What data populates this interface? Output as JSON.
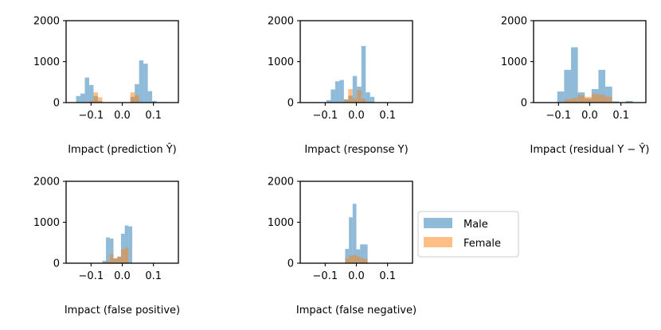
{
  "chart_data": [
    {
      "type": "histogram",
      "xlabel": "Impact (prediction Ŷ)",
      "xlim": [
        -0.18,
        0.18
      ],
      "ylim": [
        0,
        2000
      ],
      "xticks": [
        {
          "v": -0.1,
          "label": "−0.1"
        },
        {
          "v": 0.0,
          "label": "0.0"
        },
        {
          "v": 0.1,
          "label": "0.1"
        }
      ],
      "yticks": [
        {
          "v": 0,
          "label": "0"
        },
        {
          "v": 1000,
          "label": "1000"
        },
        {
          "v": 2000,
          "label": "2000"
        }
      ],
      "series": [
        {
          "name": "Male",
          "bins": [
            {
              "x0": -0.148,
              "x1": -0.134,
              "y": 160
            },
            {
              "x0": -0.134,
              "x1": -0.12,
              "y": 220
            },
            {
              "x0": -0.12,
              "x1": -0.106,
              "y": 610
            },
            {
              "x0": -0.106,
              "x1": -0.092,
              "y": 430
            },
            {
              "x0": -0.092,
              "x1": -0.078,
              "y": 160
            },
            {
              "x0": -0.078,
              "x1": -0.064,
              "y": 40
            },
            {
              "x0": 0.026,
              "x1": 0.04,
              "y": 140
            },
            {
              "x0": 0.04,
              "x1": 0.054,
              "y": 450
            },
            {
              "x0": 0.054,
              "x1": 0.068,
              "y": 1030
            },
            {
              "x0": 0.068,
              "x1": 0.082,
              "y": 950
            },
            {
              "x0": 0.082,
              "x1": 0.096,
              "y": 280
            },
            {
              "x0": 0.096,
              "x1": 0.11,
              "y": 40
            }
          ]
        },
        {
          "name": "Female",
          "bins": [
            {
              "x0": -0.106,
              "x1": -0.092,
              "y": 50
            },
            {
              "x0": -0.092,
              "x1": -0.078,
              "y": 250
            },
            {
              "x0": -0.078,
              "x1": -0.064,
              "y": 130
            },
            {
              "x0": 0.026,
              "x1": 0.04,
              "y": 250
            },
            {
              "x0": 0.04,
              "x1": 0.054,
              "y": 180
            }
          ]
        }
      ]
    },
    {
      "type": "histogram",
      "xlabel": "Impact (response Y)",
      "xlim": [
        -0.18,
        0.18
      ],
      "ylim": [
        0,
        2000
      ],
      "xticks": [
        {
          "v": -0.1,
          "label": "−0.1"
        },
        {
          "v": 0.0,
          "label": "0.0"
        },
        {
          "v": 0.1,
          "label": "0.1"
        }
      ],
      "yticks": [
        {
          "v": 0,
          "label": "0"
        },
        {
          "v": 1000,
          "label": "1000"
        },
        {
          "v": 2000,
          "label": "2000"
        }
      ],
      "series": [
        {
          "name": "Male",
          "bins": [
            {
              "x0": -0.096,
              "x1": -0.082,
              "y": 60
            },
            {
              "x0": -0.082,
              "x1": -0.068,
              "y": 320
            },
            {
              "x0": -0.068,
              "x1": -0.054,
              "y": 520
            },
            {
              "x0": -0.054,
              "x1": -0.04,
              "y": 550
            },
            {
              "x0": -0.04,
              "x1": -0.026,
              "y": 80
            },
            {
              "x0": -0.026,
              "x1": -0.012,
              "y": 170
            },
            {
              "x0": -0.012,
              "x1": 0.002,
              "y": 650
            },
            {
              "x0": 0.002,
              "x1": 0.016,
              "y": 390
            },
            {
              "x0": 0.016,
              "x1": 0.03,
              "y": 1380
            },
            {
              "x0": 0.03,
              "x1": 0.044,
              "y": 250
            },
            {
              "x0": 0.044,
              "x1": 0.058,
              "y": 140
            }
          ]
        },
        {
          "name": "Female",
          "bins": [
            {
              "x0": -0.04,
              "x1": -0.026,
              "y": 70
            },
            {
              "x0": -0.026,
              "x1": -0.012,
              "y": 330
            },
            {
              "x0": -0.012,
              "x1": 0.002,
              "y": 100
            },
            {
              "x0": 0.002,
              "x1": 0.016,
              "y": 300
            },
            {
              "x0": 0.016,
              "x1": 0.03,
              "y": 90
            }
          ]
        }
      ]
    },
    {
      "type": "histogram",
      "xlabel": "Impact (residual Y − Ŷ)",
      "xlim": [
        -0.18,
        0.18
      ],
      "ylim": [
        0,
        2000
      ],
      "xticks": [
        {
          "v": -0.1,
          "label": "−0.1"
        },
        {
          "v": 0.0,
          "label": "0.0"
        },
        {
          "v": 0.1,
          "label": "0.1"
        }
      ],
      "yticks": [
        {
          "v": 0,
          "label": "0"
        },
        {
          "v": 1000,
          "label": "1000"
        },
        {
          "v": 2000,
          "label": "2000"
        }
      ],
      "series": [
        {
          "name": "Male",
          "bins": [
            {
              "x0": -0.104,
              "x1": -0.082,
              "y": 270
            },
            {
              "x0": -0.082,
              "x1": -0.06,
              "y": 800
            },
            {
              "x0": -0.06,
              "x1": -0.038,
              "y": 1350
            },
            {
              "x0": -0.038,
              "x1": -0.016,
              "y": 250
            },
            {
              "x0": -0.016,
              "x1": 0.006,
              "y": 100
            },
            {
              "x0": 0.006,
              "x1": 0.028,
              "y": 330
            },
            {
              "x0": 0.028,
              "x1": 0.05,
              "y": 800
            },
            {
              "x0": 0.05,
              "x1": 0.072,
              "y": 390
            },
            {
              "x0": 0.072,
              "x1": 0.094,
              "y": 30
            },
            {
              "x0": 0.116,
              "x1": 0.138,
              "y": 40
            }
          ]
        },
        {
          "name": "Female",
          "bins": [
            {
              "x0": -0.082,
              "x1": -0.06,
              "y": 80
            },
            {
              "x0": -0.06,
              "x1": -0.038,
              "y": 110
            },
            {
              "x0": -0.038,
              "x1": -0.016,
              "y": 180
            },
            {
              "x0": -0.016,
              "x1": 0.006,
              "y": 140
            },
            {
              "x0": 0.006,
              "x1": 0.028,
              "y": 210
            },
            {
              "x0": 0.028,
              "x1": 0.05,
              "y": 190
            },
            {
              "x0": 0.05,
              "x1": 0.072,
              "y": 140
            }
          ]
        }
      ]
    },
    {
      "type": "histogram",
      "xlabel": "Impact (false positive)",
      "xlim": [
        -0.18,
        0.18
      ],
      "ylim": [
        0,
        2000
      ],
      "xticks": [
        {
          "v": -0.1,
          "label": "−0.1"
        },
        {
          "v": 0.0,
          "label": "0.0"
        },
        {
          "v": 0.1,
          "label": "0.1"
        }
      ],
      "yticks": [
        {
          "v": 0,
          "label": "0"
        },
        {
          "v": 1000,
          "label": "1000"
        },
        {
          "v": 2000,
          "label": "2000"
        }
      ],
      "series": [
        {
          "name": "Male",
          "bins": [
            {
              "x0": -0.064,
              "x1": -0.052,
              "y": 60
            },
            {
              "x0": -0.052,
              "x1": -0.04,
              "y": 630
            },
            {
              "x0": -0.04,
              "x1": -0.028,
              "y": 600
            },
            {
              "x0": -0.028,
              "x1": -0.016,
              "y": 120
            },
            {
              "x0": -0.016,
              "x1": -0.004,
              "y": 160
            },
            {
              "x0": -0.004,
              "x1": 0.008,
              "y": 720
            },
            {
              "x0": 0.008,
              "x1": 0.02,
              "y": 920
            },
            {
              "x0": 0.02,
              "x1": 0.032,
              "y": 900
            }
          ]
        },
        {
          "name": "Female",
          "bins": [
            {
              "x0": -0.052,
              "x1": -0.04,
              "y": 60
            },
            {
              "x0": -0.04,
              "x1": -0.028,
              "y": 220
            },
            {
              "x0": -0.028,
              "x1": -0.016,
              "y": 110
            },
            {
              "x0": -0.016,
              "x1": -0.004,
              "y": 160
            },
            {
              "x0": -0.004,
              "x1": 0.008,
              "y": 340
            },
            {
              "x0": 0.008,
              "x1": 0.02,
              "y": 380
            }
          ]
        }
      ]
    },
    {
      "type": "histogram",
      "xlabel": "Impact (false negative)",
      "xlim": [
        -0.18,
        0.18
      ],
      "ylim": [
        0,
        2000
      ],
      "xticks": [
        {
          "v": -0.1,
          "label": "−0.1"
        },
        {
          "v": 0.0,
          "label": "0.0"
        },
        {
          "v": 0.1,
          "label": "0.1"
        }
      ],
      "yticks": [
        {
          "v": 0,
          "label": "0"
        },
        {
          "v": 1000,
          "label": "1000"
        },
        {
          "v": 2000,
          "label": "2000"
        }
      ],
      "series": [
        {
          "name": "Male",
          "bins": [
            {
              "x0": -0.036,
              "x1": -0.024,
              "y": 350
            },
            {
              "x0": -0.024,
              "x1": -0.012,
              "y": 1120
            },
            {
              "x0": -0.012,
              "x1": 0.0,
              "y": 1450
            },
            {
              "x0": 0.0,
              "x1": 0.012,
              "y": 340
            },
            {
              "x0": 0.012,
              "x1": 0.024,
              "y": 460
            },
            {
              "x0": 0.024,
              "x1": 0.036,
              "y": 460
            }
          ]
        },
        {
          "name": "Female",
          "bins": [
            {
              "x0": -0.036,
              "x1": -0.024,
              "y": 120
            },
            {
              "x0": -0.024,
              "x1": -0.012,
              "y": 190
            },
            {
              "x0": -0.012,
              "x1": 0.0,
              "y": 200
            },
            {
              "x0": 0.0,
              "x1": 0.012,
              "y": 170
            },
            {
              "x0": 0.012,
              "x1": 0.024,
              "y": 130
            },
            {
              "x0": 0.024,
              "x1": 0.036,
              "y": 100
            }
          ]
        }
      ]
    }
  ],
  "legend": {
    "placement": "right of bottom row",
    "entries": [
      {
        "label": "Male",
        "color": "#1f77b4"
      },
      {
        "label": "Female",
        "color": "#ff7f0e"
      }
    ]
  },
  "colors": {
    "Male": "#1f77b4",
    "Female": "#ff7f0e",
    "bar_opacity": 0.5
  }
}
